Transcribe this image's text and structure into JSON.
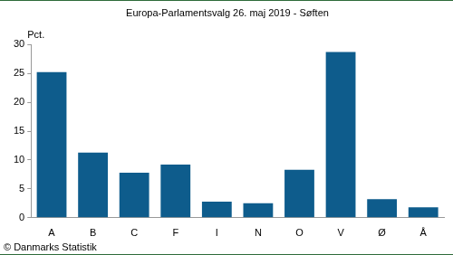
{
  "chart_data": {
    "type": "bar",
    "title": "Europa-Parlamentsvalg 26. maj 2019 - Søften",
    "ylabel": "Pct.",
    "footnote": "© Danmarks Statistik",
    "categories": [
      "A",
      "B",
      "C",
      "F",
      "I",
      "N",
      "O",
      "V",
      "Ø",
      "Å"
    ],
    "values": [
      25.2,
      11.3,
      7.8,
      9.2,
      2.8,
      2.5,
      8.3,
      28.7,
      3.2,
      1.8
    ],
    "color": "#0e5c8c",
    "ylim": [
      0,
      30
    ],
    "yticks": [
      0,
      5,
      10,
      15,
      20,
      25,
      30
    ],
    "grid": false
  }
}
